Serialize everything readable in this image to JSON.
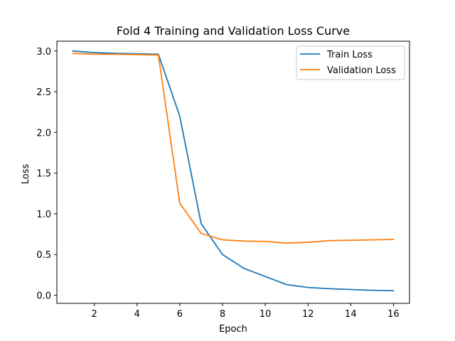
{
  "chart_data": {
    "type": "line",
    "title": "Fold 4 Training and Validation Loss Curve",
    "xlabel": "Epoch",
    "ylabel": "Loss",
    "xlim": [
      0.25,
      16.75
    ],
    "ylim": [
      -0.1,
      3.12
    ],
    "xticks": [
      2,
      4,
      6,
      8,
      10,
      12,
      14,
      16
    ],
    "yticks": [
      0.0,
      0.5,
      1.0,
      1.5,
      2.0,
      2.5,
      3.0
    ],
    "ytick_labels": [
      "0.0",
      "0.5",
      "1.0",
      "1.5",
      "2.0",
      "2.5",
      "3.0"
    ],
    "grid": false,
    "legend_position": "top-right",
    "x": [
      1,
      2,
      3,
      4,
      5,
      6,
      7,
      8,
      9,
      10,
      11,
      12,
      13,
      14,
      15,
      16
    ],
    "series": [
      {
        "name": "Train Loss",
        "color": "#1f77b4",
        "values": [
          3.0,
          2.98,
          2.97,
          2.965,
          2.96,
          2.2,
          0.88,
          0.5,
          0.33,
          0.23,
          0.13,
          0.095,
          0.08,
          0.07,
          0.06,
          0.055
        ]
      },
      {
        "name": "Validation Loss",
        "color": "#ff7f0e",
        "values": [
          2.97,
          2.96,
          2.96,
          2.955,
          2.95,
          1.13,
          0.76,
          0.68,
          0.665,
          0.66,
          0.64,
          0.65,
          0.67,
          0.675,
          0.68,
          0.685
        ]
      }
    ]
  }
}
